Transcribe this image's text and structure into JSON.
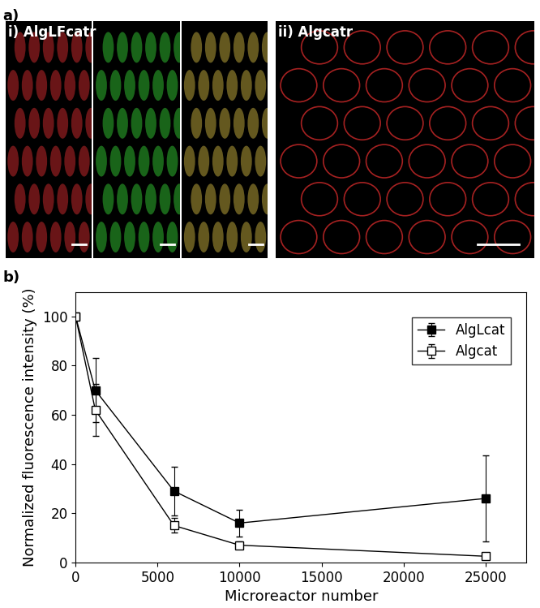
{
  "panels": {
    "a": {
      "label": "a)",
      "images": [
        {
          "label": "i) AlgLFcatr"
        },
        {
          "label": "ii) Algcatr"
        }
      ]
    },
    "b": {
      "label": "b)"
    }
  },
  "chart_data": {
    "type": "line",
    "x_label": "Microreactor number",
    "y_label": "Normalized fluorescence intensity (%)",
    "x": [
      0,
      1200,
      6000,
      10000,
      25000
    ],
    "series": [
      {
        "name": "AlgLcat",
        "color": "#000000",
        "marker": "square",
        "line_style": "solid",
        "values": [
          100,
          70,
          29,
          16,
          26
        ],
        "errors": [
          0,
          13,
          10,
          5.5,
          17.5
        ]
      },
      {
        "name": "Algcat",
        "color": "#000000",
        "marker": "open_square",
        "line_style": "solid",
        "values": [
          100,
          62,
          15,
          7,
          2.5
        ],
        "errors": [
          0,
          10.5,
          3,
          1.5,
          0.5
        ]
      }
    ],
    "xlim": [
      0,
      27500
    ],
    "xticks": [
      0,
      5000,
      10000,
      15000,
      20000,
      25000
    ],
    "ylim": [
      0,
      110
    ],
    "yticks": [
      0,
      20,
      40,
      60,
      80,
      100
    ],
    "legend": "upper right",
    "grid": false
  }
}
